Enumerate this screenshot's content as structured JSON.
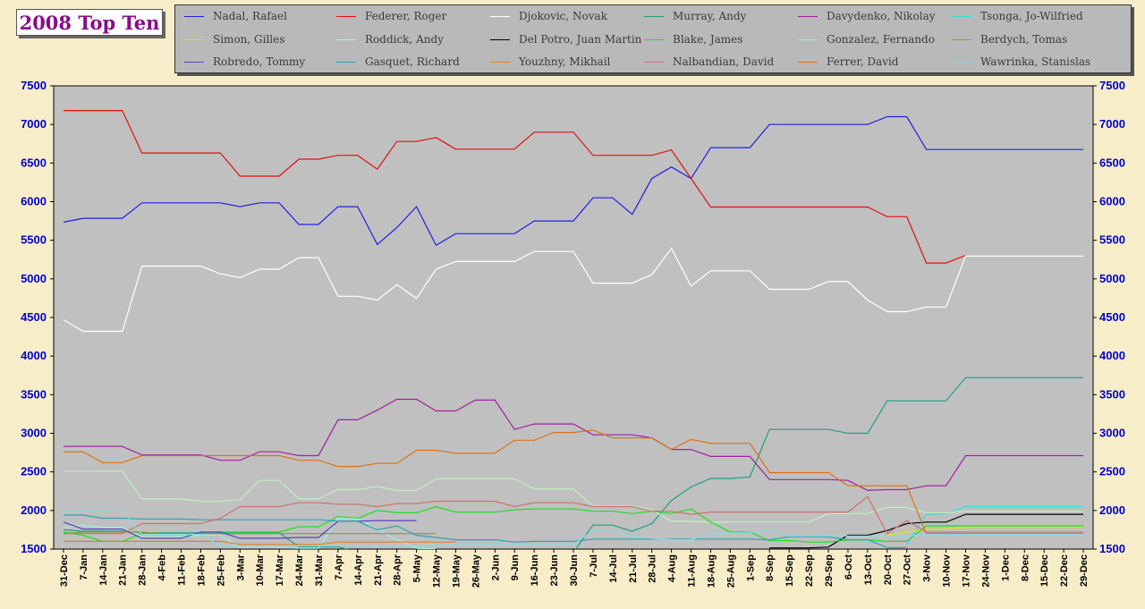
{
  "chart_data": {
    "type": "line",
    "title": "2008 Top Ten",
    "xlabel": "",
    "ylabel": "",
    "ylim": [
      1500,
      7500
    ],
    "y_ticks": [
      1500,
      2000,
      2500,
      3000,
      3500,
      4000,
      4500,
      5000,
      5500,
      6000,
      6500,
      7000,
      7500
    ],
    "grid": false,
    "legend_position": "top",
    "background": "#c0c0c0",
    "categories": [
      "31-Dec",
      "7-Jan",
      "14-Jan",
      "21-Jan",
      "28-Jan",
      "4-Feb",
      "11-Feb",
      "18-Feb",
      "25-Feb",
      "3-Mar",
      "10-Mar",
      "17-Mar",
      "24-Mar",
      "31-Mar",
      "7-Apr",
      "14-Apr",
      "21-Apr",
      "28-Apr",
      "5-May",
      "12-May",
      "19-May",
      "26-May",
      "2-Jun",
      "9-Jun",
      "16-Jun",
      "23-Jun",
      "30-Jun",
      "7-Jul",
      "14-Jul",
      "21-Jul",
      "28-Jul",
      "4-Aug",
      "11-Aug",
      "18-Aug",
      "25-Aug",
      "1-Sep",
      "8-Sep",
      "15-Sep",
      "22-Sep",
      "29-Sep",
      "6-Oct",
      "13-Oct",
      "20-Oct",
      "27-Oct",
      "3-Nov",
      "10-Nov",
      "17-Nov",
      "24-Nov",
      "1-Dec",
      "8-Dec",
      "15-Dec",
      "22-Dec",
      "29-Dec"
    ],
    "series": [
      {
        "name": "Nadal, Rafael",
        "color": "#2020e0",
        "values": [
          5735,
          5785,
          5785,
          5785,
          5985,
          5985,
          5985,
          5985,
          5985,
          5935,
          5985,
          5985,
          5705,
          5705,
          5935,
          5935,
          5445,
          5665,
          5935,
          5435,
          5585,
          5585,
          5585,
          5585,
          5750,
          5750,
          5750,
          6050,
          6050,
          5835,
          6300,
          6450,
          6300,
          6700,
          6700,
          6700,
          7000,
          7000,
          7000,
          7000,
          7000,
          7000,
          7100,
          7100,
          6675,
          6675,
          6675,
          6675,
          6675,
          6675,
          6675,
          6675,
          6675
        ]
      },
      {
        "name": "Federer, Roger",
        "color": "#e01010",
        "values": [
          7180,
          7180,
          7180,
          7180,
          6630,
          6630,
          6630,
          6630,
          6630,
          6330,
          6330,
          6330,
          6550,
          6550,
          6600,
          6600,
          6420,
          6780,
          6780,
          6830,
          6680,
          6680,
          6680,
          6680,
          6900,
          6900,
          6900,
          6600,
          6600,
          6600,
          6600,
          6670,
          6300,
          5930,
          5930,
          5930,
          5930,
          5930,
          5930,
          5930,
          5930,
          5930,
          5805,
          5805,
          5205,
          5205,
          5305,
          null,
          null,
          null,
          null,
          null,
          null
        ]
      },
      {
        "name": "Djokovic, Novak",
        "color": "#ffffff",
        "values": [
          4470,
          4320,
          4320,
          4320,
          5165,
          5165,
          5165,
          5165,
          5065,
          5015,
          5125,
          5125,
          5275,
          5275,
          4775,
          4775,
          4725,
          4925,
          4745,
          5125,
          5225,
          5225,
          5225,
          5225,
          5355,
          5355,
          5355,
          4945,
          4945,
          4945,
          5055,
          5395,
          4905,
          5105,
          5105,
          5105,
          4865,
          4865,
          4865,
          4965,
          4965,
          4725,
          4575,
          4575,
          4635,
          4635,
          5295,
          5295,
          5295,
          5295,
          5295,
          5295,
          5295
        ]
      },
      {
        "name": "Murray, Andy",
        "color": "#20a080",
        "values": [
          1750,
          1730,
          1730,
          1730,
          1710,
          1710,
          1710,
          1710,
          1710,
          1710,
          1710,
          1710,
          1530,
          1530,
          1530,
          1460,
          1460,
          1460,
          1460,
          1460,
          1460,
          1460,
          1460,
          1460,
          1460,
          1460,
          1460,
          1810,
          1810,
          1730,
          1830,
          2130,
          2305,
          2415,
          2415,
          2435,
          3050,
          3050,
          3050,
          3050,
          3000,
          3000,
          3420,
          3420,
          3420,
          3420,
          3720,
          3720,
          3720,
          3720,
          3720,
          3720,
          3720
        ]
      },
      {
        "name": "Davydenko, Nikolay",
        "color": "#a020a0",
        "values": [
          2830,
          2830,
          2830,
          2830,
          2720,
          2720,
          2720,
          2720,
          2650,
          2650,
          2760,
          2760,
          2710,
          2710,
          3175,
          3175,
          3300,
          3440,
          3440,
          3290,
          3290,
          3430,
          3430,
          3050,
          3120,
          3120,
          3120,
          2980,
          2980,
          2980,
          2940,
          2790,
          2790,
          2700,
          2700,
          2700,
          2400,
          2400,
          2400,
          2400,
          2390,
          2260,
          2270,
          2270,
          2320,
          2320,
          2710,
          2710,
          2710,
          2710,
          2710,
          2710,
          2710
        ]
      },
      {
        "name": "Tsonga, Jo-Wilfried",
        "color": "#30e0e0",
        "values": [
          null,
          null,
          null,
          null,
          null,
          null,
          null,
          null,
          null,
          null,
          null,
          null,
          null,
          null,
          null,
          null,
          null,
          null,
          null,
          null,
          null,
          null,
          null,
          null,
          null,
          null,
          null,
          null,
          null,
          null,
          null,
          null,
          null,
          null,
          null,
          null,
          null,
          null,
          null,
          null,
          null,
          null,
          null,
          1560,
          1950,
          1960,
          2050,
          2050,
          2050,
          2050,
          2050,
          2050,
          2050
        ]
      },
      {
        "name": "Simon, Gilles",
        "color": "#e0e020",
        "values": [
          null,
          null,
          null,
          null,
          null,
          null,
          null,
          null,
          null,
          null,
          null,
          null,
          null,
          null,
          null,
          null,
          null,
          null,
          null,
          null,
          null,
          null,
          null,
          null,
          null,
          null,
          null,
          null,
          null,
          null,
          null,
          null,
          null,
          null,
          null,
          null,
          null,
          null,
          null,
          null,
          null,
          null,
          1680,
          1720,
          1760,
          1760,
          1780,
          1780,
          1780,
          1780,
          1780,
          1780,
          1780
        ]
      },
      {
        "name": "Roddick, Andy",
        "color": "#c0f0c0",
        "values": [
          2510,
          2510,
          2510,
          2510,
          2150,
          2150,
          2150,
          2120,
          2120,
          2140,
          2390,
          2390,
          2150,
          2150,
          2270,
          2270,
          2310,
          2260,
          2260,
          2410,
          2410,
          2410,
          2410,
          2410,
          2280,
          2280,
          2280,
          2060,
          2060,
          2060,
          2010,
          1860,
          1860,
          1850,
          1850,
          1850,
          1850,
          1850,
          1850,
          1960,
          1960,
          1960,
          2040,
          2040,
          1970,
          1970,
          1990,
          1990,
          1990,
          1990,
          1990,
          1990,
          1990
        ]
      },
      {
        "name": "Del Potro, Juan Martin",
        "color": "#000000",
        "values": [
          null,
          null,
          null,
          null,
          null,
          null,
          null,
          null,
          null,
          null,
          null,
          null,
          null,
          null,
          null,
          null,
          null,
          null,
          null,
          null,
          null,
          null,
          null,
          null,
          null,
          null,
          null,
          null,
          null,
          null,
          null,
          null,
          null,
          null,
          null,
          null,
          1515,
          1515,
          1515,
          1525,
          1680,
          1680,
          1740,
          1830,
          1850,
          1850,
          1950,
          1950,
          1950,
          1950,
          1950,
          1950,
          1950
        ]
      },
      {
        "name": "Blake, James",
        "color": "#20e020",
        "values": [
          1720,
          1680,
          1600,
          1600,
          1700,
          1690,
          1690,
          1700,
          1720,
          1720,
          1720,
          1720,
          1790,
          1790,
          1920,
          1900,
          2000,
          1970,
          1970,
          2050,
          1980,
          1980,
          1980,
          2010,
          2020,
          2020,
          2020,
          1990,
          1990,
          1960,
          1990,
          1960,
          2020,
          1850,
          1720,
          1720,
          1610,
          1610,
          1590,
          1590,
          1620,
          1620,
          1600,
          1600,
          1800,
          1800,
          1800,
          1800,
          1800,
          1800,
          1800,
          1800,
          1800
        ]
      },
      {
        "name": "Gonzalez, Fernando",
        "color": "#a0f0e0",
        "values": [
          1780,
          1810,
          1780,
          1780,
          1660,
          1660,
          1660,
          1680,
          1680,
          1520,
          1520,
          1520,
          1510,
          1510,
          1900,
          1890,
          1760,
          1620,
          1510,
          1500,
          null,
          null,
          null,
          null,
          null,
          null,
          null,
          null,
          null,
          null,
          null,
          null,
          null,
          null,
          null,
          null,
          null,
          null,
          null,
          null,
          null,
          null,
          null,
          null,
          null,
          null,
          null,
          null,
          null,
          null,
          null,
          null,
          null
        ]
      },
      {
        "name": "Berdych, Tomas",
        "color": "#8a9a30",
        "values": [
          1700,
          1720,
          1720,
          1720,
          1720,
          1700,
          1700,
          1700,
          1700,
          1700,
          1700,
          1700,
          1700,
          1700,
          1700,
          1700,
          1700,
          1700,
          1700,
          1700,
          null,
          null,
          null,
          null,
          null,
          null,
          null,
          null,
          null,
          null,
          null,
          null,
          null,
          null,
          null,
          null,
          null,
          null,
          null,
          null,
          null,
          null,
          null,
          null,
          null,
          null,
          null,
          null,
          null,
          null,
          null,
          null,
          null
        ]
      },
      {
        "name": "Robredo, Tommy",
        "color": "#6040c0",
        "values": [
          1850,
          1760,
          1760,
          1760,
          1640,
          1640,
          1640,
          1720,
          1720,
          1640,
          1640,
          1640,
          1650,
          1650,
          1860,
          1860,
          1870,
          1870,
          1870,
          null,
          null,
          null,
          null,
          null,
          null,
          null,
          null,
          null,
          null,
          null,
          null,
          null,
          null,
          null,
          null,
          null,
          null,
          null,
          null,
          null,
          null,
          null,
          null,
          null,
          null,
          null,
          null,
          null,
          null,
          null,
          null,
          null,
          null
        ]
      },
      {
        "name": "Gasquet, Richard",
        "color": "#30a0b0",
        "values": [
          1940,
          1940,
          1900,
          1900,
          1890,
          1890,
          1890,
          1880,
          1880,
          1880,
          1880,
          1880,
          1880,
          1880,
          1860,
          1860,
          1750,
          1800,
          1680,
          1650,
          1620,
          1620,
          1620,
          1590,
          1600,
          1600,
          1600,
          1630,
          1630,
          1630,
          1630,
          1630,
          1630,
          1630,
          1630,
          1630,
          1620,
          1660,
          1660,
          1660,
          1620,
          1620,
          1520,
          1520,
          null,
          null,
          null,
          null,
          null,
          null,
          null,
          null,
          null
        ]
      },
      {
        "name": "Youzhny, Mikhail",
        "color": "#e08020",
        "values": [
          1600,
          1600,
          1600,
          1600,
          1600,
          1600,
          1600,
          1600,
          1600,
          1560,
          1560,
          1560,
          1560,
          1560,
          1590,
          1590,
          1590,
          1590,
          1590,
          1590,
          1590,
          null,
          null,
          null,
          null,
          null,
          null,
          null,
          null,
          null,
          null,
          null,
          null,
          null,
          null,
          null,
          null,
          null,
          null,
          null,
          null,
          null,
          null,
          null,
          null,
          null,
          null,
          null,
          null,
          null,
          null,
          null,
          null
        ]
      },
      {
        "name": "Nalbandian, David",
        "color": "#d07070",
        "values": [
          1700,
          1700,
          1700,
          1700,
          1830,
          1830,
          1830,
          1830,
          1900,
          2050,
          2050,
          2050,
          2100,
          2100,
          2080,
          2080,
          2050,
          2090,
          2090,
          2120,
          2120,
          2120,
          2120,
          2050,
          2100,
          2100,
          2100,
          2050,
          2050,
          2050,
          1990,
          1990,
          1950,
          1980,
          1980,
          1980,
          1980,
          1980,
          1980,
          1980,
          1980,
          2180,
          1700,
          1870,
          1720,
          1720,
          1720,
          1720,
          1720,
          1720,
          1720,
          1720,
          1720
        ]
      },
      {
        "name": "Ferrer, David",
        "color": "#e07010",
        "values": [
          2760,
          2760,
          2620,
          2620,
          2710,
          2710,
          2710,
          2710,
          2710,
          2710,
          2710,
          2710,
          2650,
          2650,
          2570,
          2570,
          2610,
          2610,
          2780,
          2780,
          2740,
          2740,
          2740,
          2910,
          2910,
          3010,
          3010,
          3040,
          2940,
          2940,
          2940,
          2790,
          2920,
          2870,
          2870,
          2870,
          2490,
          2490,
          2490,
          2490,
          2320,
          2320,
          2320,
          2320,
          1700,
          1700,
          1700,
          1700,
          1700,
          1700,
          1700,
          1700,
          1700
        ]
      },
      {
        "name": "Wawrinka, Stanislas",
        "color": "#90d8e0",
        "values": [
          2000,
          2000,
          2000,
          2000,
          1690,
          1690,
          1690,
          1690,
          1540,
          1540,
          1540,
          1540,
          1540,
          1540,
          1540,
          1540,
          1540,
          1540,
          1540,
          1560,
          1560,
          1560,
          1560,
          1560,
          1560,
          1560,
          1560,
          1740,
          1740,
          1660,
          1640,
          1620,
          1620,
          1710,
          1710,
          1710,
          1750,
          1670,
          1670,
          1670,
          1670,
          1670,
          1670,
          1670,
          1690,
          1690,
          1690,
          1690,
          1690,
          1690,
          1690,
          1690,
          1690
        ]
      }
    ]
  }
}
